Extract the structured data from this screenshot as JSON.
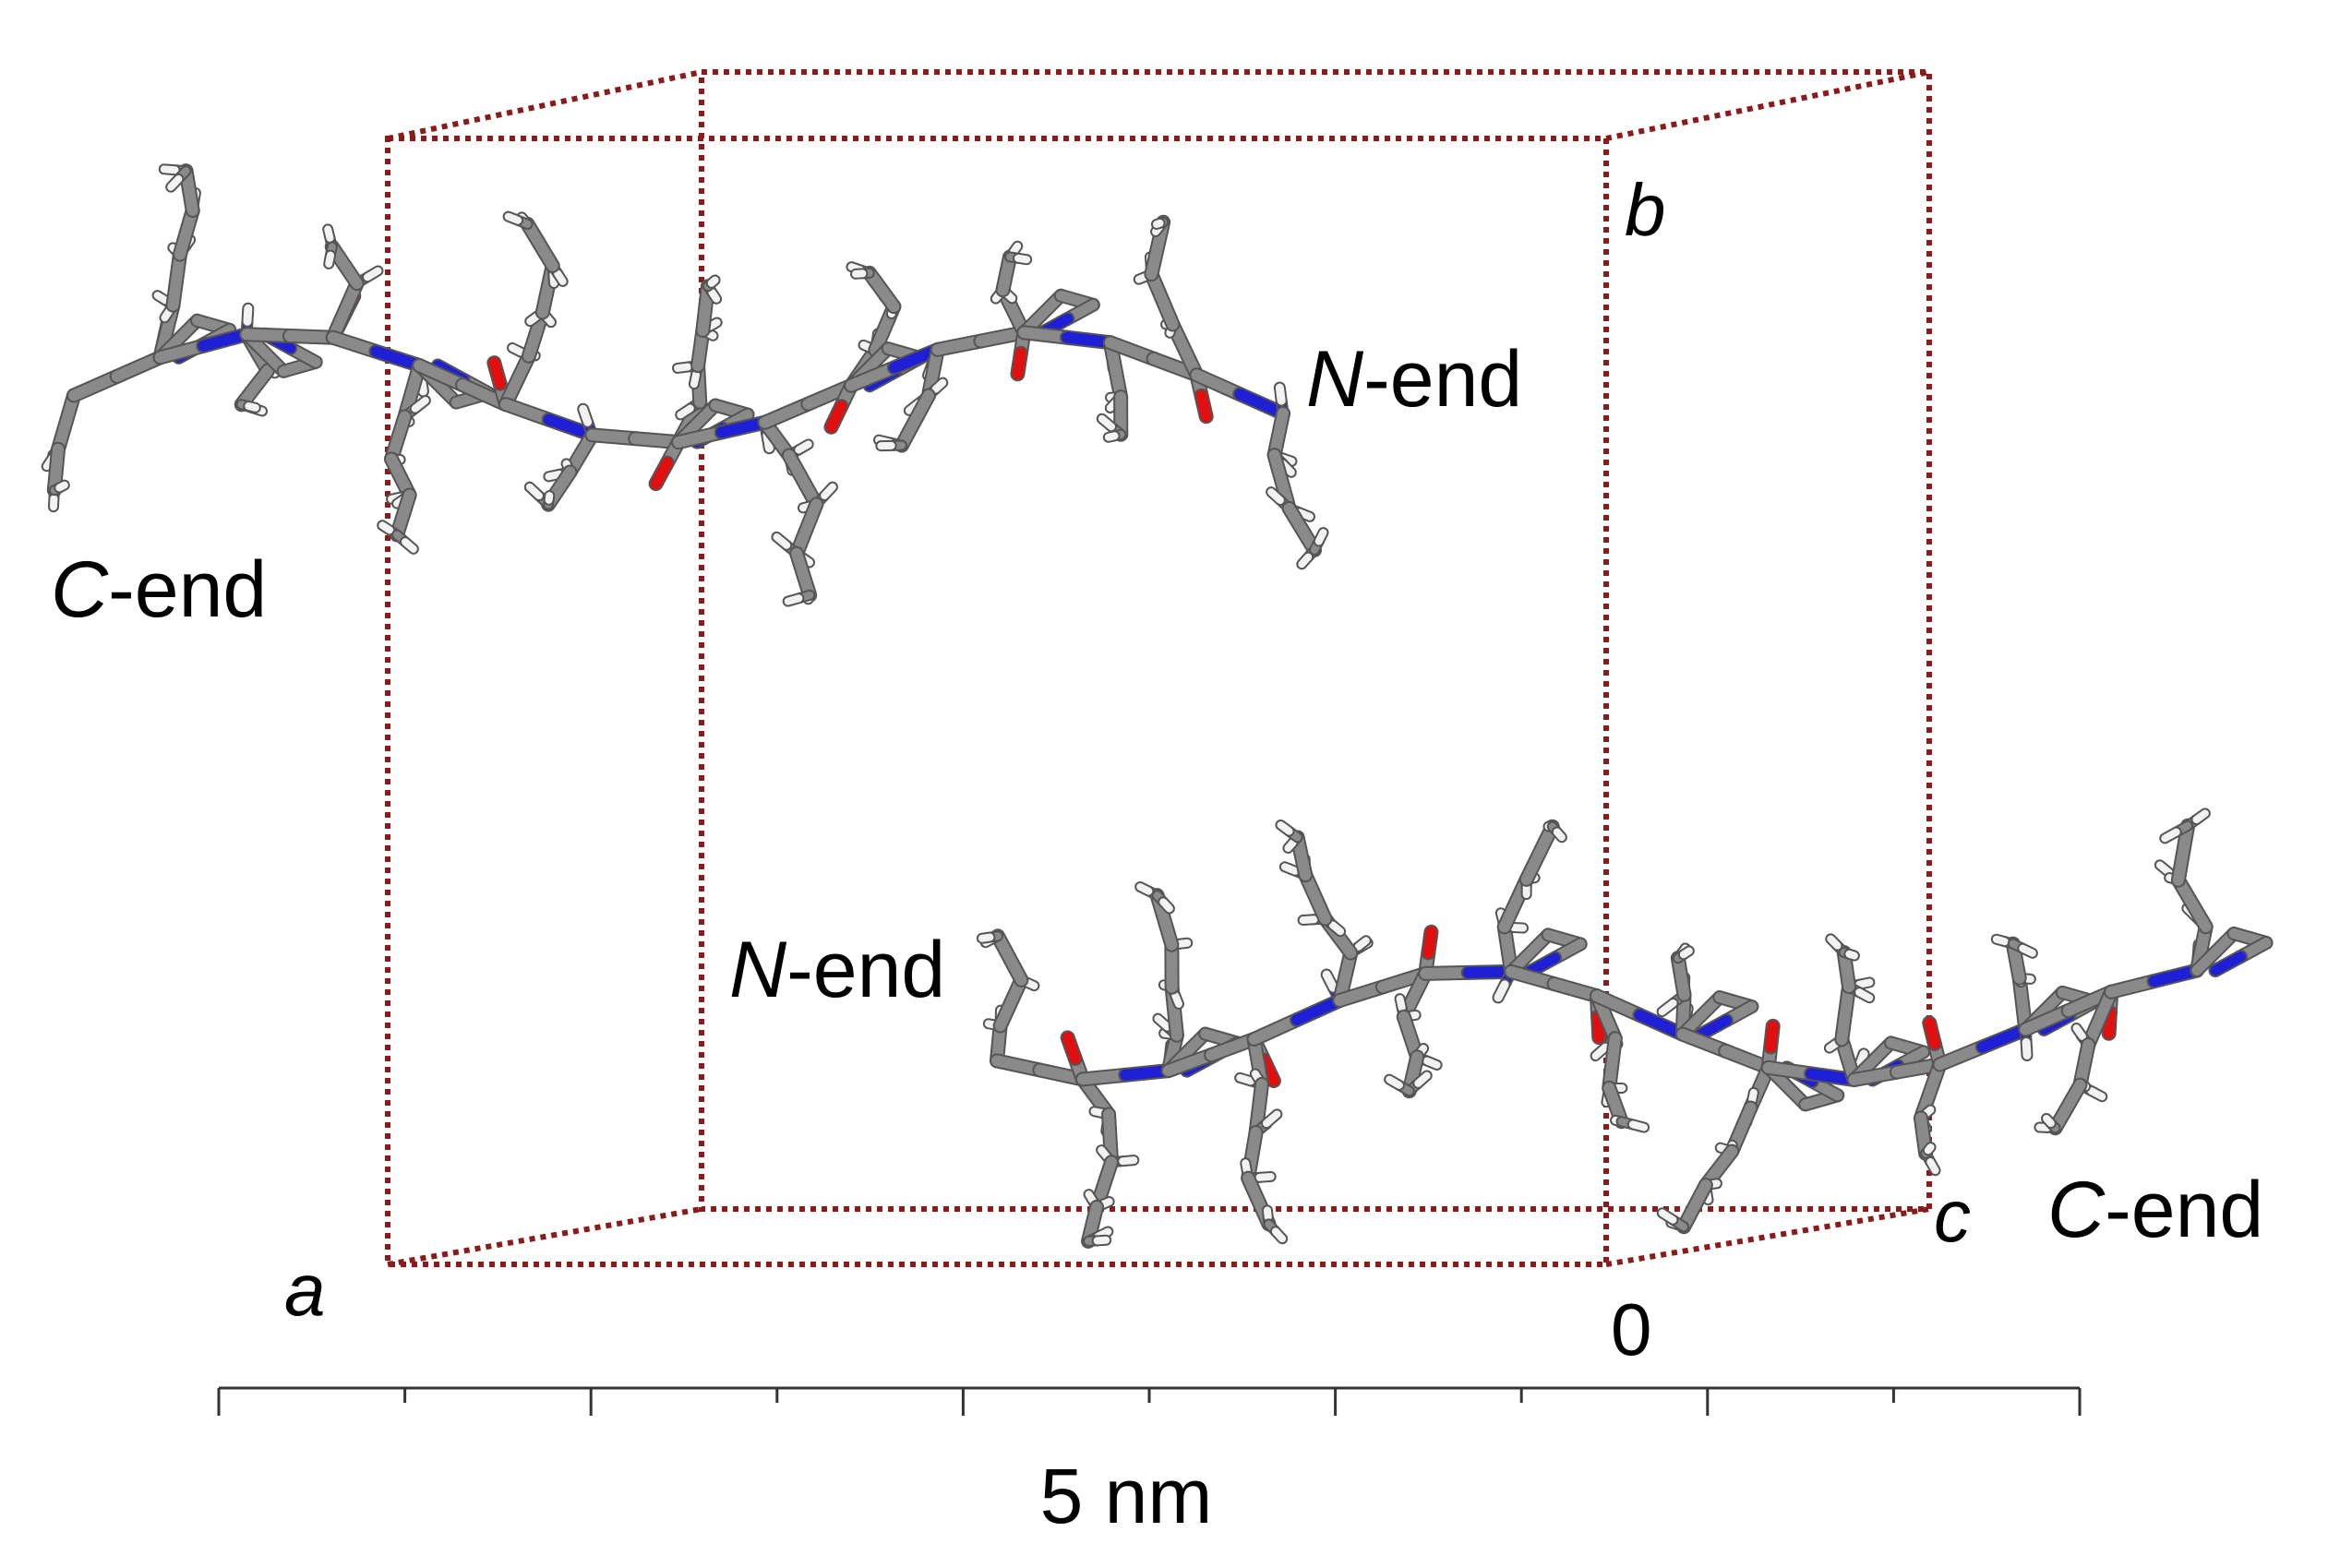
{
  "labels": {
    "top_c_end": {
      "italic": "C",
      "rest": "-end"
    },
    "top_n_end": {
      "italic": "N",
      "rest": "-end"
    },
    "bottom_n_end": {
      "italic": "N",
      "rest": "-end"
    },
    "bottom_c_end": {
      "italic": "C",
      "rest": "-end"
    }
  },
  "axes": {
    "a": "a",
    "b": "b",
    "c": "c",
    "origin": "0"
  },
  "scale_bar": {
    "label": "5 nm",
    "major_ticks": 6,
    "minor_ticks": 5
  },
  "colors": {
    "cell_box": "#8b1a1a",
    "carbon": "#8a8a8a",
    "nitrogen": "#1f1fd6",
    "oxygen": "#e01010",
    "hydrogen": "#f2f2f2"
  }
}
